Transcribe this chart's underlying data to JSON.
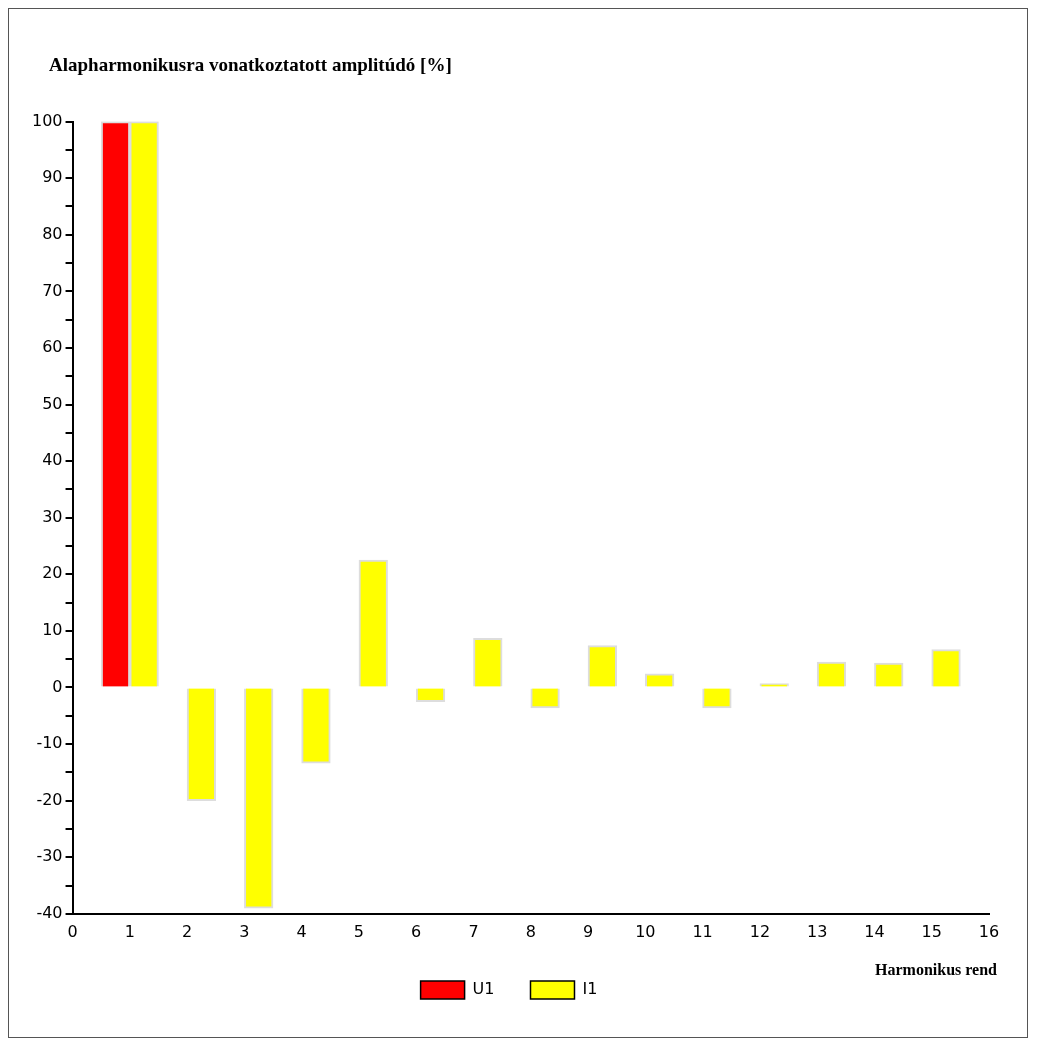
{
  "chart_data": {
    "type": "bar",
    "title": "Alapharmonikusra vonatkoztatott amplitúdó [%]",
    "xlabel": "Harmonikus rend",
    "x": [
      1,
      2,
      3,
      4,
      5,
      6,
      7,
      8,
      9,
      10,
      11,
      12,
      13,
      14,
      15
    ],
    "series": [
      {
        "name": "U1",
        "color": "#ff0000",
        "values": [
          100,
          0,
          0,
          0,
          0,
          0,
          0,
          0,
          0,
          0,
          0,
          0,
          0,
          0,
          0
        ]
      },
      {
        "name": "I1",
        "color": "#ffff00",
        "values": [
          100,
          -20,
          -39,
          -13.4,
          22.5,
          -2.5,
          8.7,
          -3.6,
          7.4,
          2.4,
          -3.6,
          0.7,
          4.5,
          4.3,
          6.7
        ]
      }
    ],
    "xlim": [
      0,
      16
    ],
    "xticks": [
      0,
      1,
      2,
      3,
      4,
      5,
      6,
      7,
      8,
      9,
      10,
      11,
      12,
      13,
      14,
      15,
      16
    ],
    "ylim": [
      -40,
      100
    ],
    "yticks": [
      -40,
      {
        "value": -35,
        "label": null
      },
      -30,
      {
        "value": -25,
        "label": null
      },
      -20,
      {
        "value": -15,
        "label": null
      },
      -10,
      {
        "value": -5,
        "label": null
      },
      0,
      {
        "value": 5,
        "label": null
      },
      10,
      {
        "value": 15,
        "label": null
      },
      20,
      {
        "value": 25,
        "label": null
      },
      30,
      {
        "value": 35,
        "label": null
      },
      40,
      {
        "value": 45,
        "label": null
      },
      50,
      {
        "value": 55,
        "label": null
      },
      60,
      {
        "value": 65,
        "label": null
      },
      70,
      {
        "value": 75,
        "label": null
      },
      80,
      {
        "value": 85,
        "label": null
      },
      90,
      {
        "value": 95,
        "label": null
      },
      100
    ],
    "grid": false,
    "legend": "bottom"
  }
}
